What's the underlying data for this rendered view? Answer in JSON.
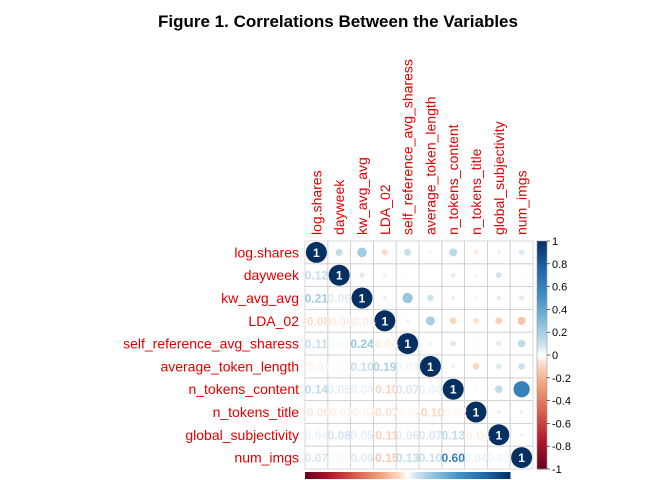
{
  "chart_data": {
    "type": "heatmap",
    "title": "Figure 1. Correlations Between the Variables",
    "variables": [
      "log.shares",
      "dayweek",
      "kw_avg_avg",
      "LDA_02",
      "self_reference_avg_sharess",
      "average_token_length",
      "n_tokens_content",
      "n_tokens_title",
      "global_subjectivity",
      "num_imgs"
    ],
    "matrix": [
      [
        1.0,
        0.12,
        0.21,
        -0.08,
        0.11,
        -0.03,
        0.14,
        -0.05,
        0.04,
        0.07
      ],
      [
        0.12,
        1.0,
        0.06,
        -0.04,
        0.02,
        0.01,
        0.05,
        -0.03,
        0.08,
        0.02
      ],
      [
        0.21,
        0.06,
        1.0,
        -0.04,
        0.24,
        0.1,
        0.04,
        -0.03,
        0.05,
        0.06
      ],
      [
        -0.08,
        -0.04,
        -0.04,
        1.0,
        -0.04,
        0.19,
        -0.1,
        -0.07,
        -0.11,
        -0.15
      ],
      [
        0.11,
        0.02,
        0.24,
        -0.04,
        1.0,
        0.03,
        0.07,
        -0.02,
        0.06,
        0.13
      ],
      [
        -0.03,
        0.01,
        0.1,
        0.19,
        0.03,
        1.0,
        0.04,
        -0.1,
        0.07,
        0.1
      ],
      [
        0.14,
        0.05,
        0.04,
        -0.1,
        0.07,
        0.04,
        1.0,
        -0.02,
        0.13,
        0.6
      ],
      [
        -0.05,
        -0.03,
        -0.03,
        -0.07,
        -0.02,
        -0.1,
        -0.02,
        1.0,
        -0.04,
        0.04
      ],
      [
        0.04,
        0.08,
        0.05,
        -0.11,
        0.06,
        0.07,
        0.13,
        -0.04,
        1.0,
        0.03
      ],
      [
        0.07,
        0.02,
        0.06,
        -0.15,
        0.13,
        0.1,
        0.6,
        0.04,
        0.03,
        1.0
      ]
    ],
    "upper_triangle": "circles",
    "lower_triangle": "numbers",
    "colorbar": {
      "range": [
        -1,
        1
      ],
      "ticks": [
        "1",
        "0.8",
        "0.6",
        "0.4",
        "0.2",
        "0",
        "-0.2",
        "-0.4",
        "-0.6",
        "-0.8",
        "-1"
      ]
    },
    "colors": {
      "negative": "#67001F",
      "neutral": "#FFFFFF",
      "positive": "#053061",
      "label": "#e00000",
      "grid": "#cfcfcf"
    }
  }
}
